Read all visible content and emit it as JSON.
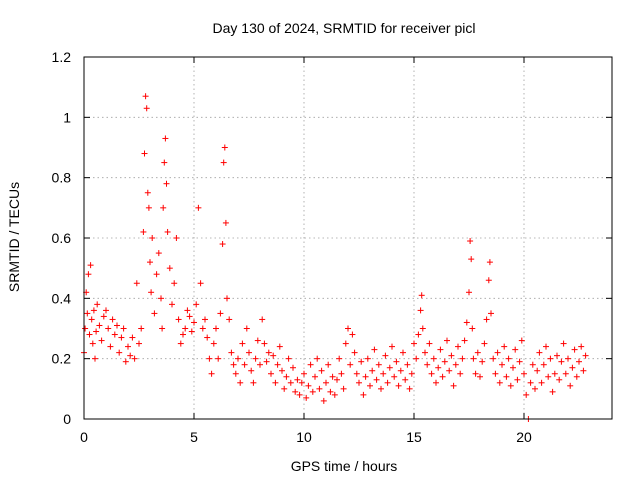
{
  "chart_data": {
    "type": "scatter",
    "title": "Day 130 of 2024, SRMTID for receiver picl",
    "xlabel": "GPS time / hours",
    "ylabel": "SRMTID / TECUs",
    "xlim": [
      0,
      24
    ],
    "ylim": [
      0,
      1.2
    ],
    "xticks": [
      0,
      5,
      10,
      15,
      20
    ],
    "yticks": [
      0,
      0.2,
      0.4,
      0.6,
      0.8,
      1,
      1.2
    ],
    "xtick_labels": [
      "0",
      "5",
      "10",
      "15",
      "20"
    ],
    "ytick_labels": [
      "0",
      "0.2",
      "0.4",
      "0.6",
      "0.8",
      "1",
      "1.2"
    ],
    "grid": true,
    "marker": "+",
    "color": "#ff0000",
    "series": [
      {
        "name": "SRMTID",
        "points": [
          [
            0.0,
            0.22
          ],
          [
            0.05,
            0.3
          ],
          [
            0.1,
            0.42
          ],
          [
            0.15,
            0.35
          ],
          [
            0.2,
            0.48
          ],
          [
            0.25,
            0.28
          ],
          [
            0.3,
            0.51
          ],
          [
            0.35,
            0.33
          ],
          [
            0.4,
            0.25
          ],
          [
            0.45,
            0.36
          ],
          [
            0.5,
            0.2
          ],
          [
            0.55,
            0.29
          ],
          [
            0.6,
            0.38
          ],
          [
            0.7,
            0.31
          ],
          [
            0.8,
            0.26
          ],
          [
            0.9,
            0.34
          ],
          [
            1.0,
            0.36
          ],
          [
            1.1,
            0.3
          ],
          [
            1.2,
            0.24
          ],
          [
            1.3,
            0.33
          ],
          [
            1.4,
            0.28
          ],
          [
            1.5,
            0.31
          ],
          [
            1.6,
            0.22
          ],
          [
            1.7,
            0.27
          ],
          [
            1.8,
            0.3
          ],
          [
            1.9,
            0.19
          ],
          [
            2.0,
            0.24
          ],
          [
            2.1,
            0.21
          ],
          [
            2.2,
            0.27
          ],
          [
            2.3,
            0.2
          ],
          [
            2.4,
            0.45
          ],
          [
            2.5,
            0.25
          ],
          [
            2.6,
            0.3
          ],
          [
            2.7,
            0.62
          ],
          [
            2.75,
            0.88
          ],
          [
            2.8,
            1.07
          ],
          [
            2.85,
            1.03
          ],
          [
            2.9,
            0.75
          ],
          [
            2.95,
            0.7
          ],
          [
            3.0,
            0.52
          ],
          [
            3.05,
            0.42
          ],
          [
            3.1,
            0.6
          ],
          [
            3.2,
            0.35
          ],
          [
            3.3,
            0.48
          ],
          [
            3.4,
            0.55
          ],
          [
            3.5,
            0.4
          ],
          [
            3.55,
            0.3
          ],
          [
            3.6,
            0.7
          ],
          [
            3.65,
            0.85
          ],
          [
            3.7,
            0.93
          ],
          [
            3.75,
            0.78
          ],
          [
            3.8,
            0.62
          ],
          [
            3.9,
            0.5
          ],
          [
            4.0,
            0.38
          ],
          [
            4.1,
            0.45
          ],
          [
            4.2,
            0.6
          ],
          [
            4.3,
            0.33
          ],
          [
            4.4,
            0.25
          ],
          [
            4.5,
            0.28
          ],
          [
            4.6,
            0.3
          ],
          [
            4.7,
            0.36
          ],
          [
            4.8,
            0.34
          ],
          [
            4.9,
            0.29
          ],
          [
            5.0,
            0.32
          ],
          [
            5.1,
            0.38
          ],
          [
            5.2,
            0.7
          ],
          [
            5.3,
            0.45
          ],
          [
            5.4,
            0.3
          ],
          [
            5.5,
            0.33
          ],
          [
            5.6,
            0.27
          ],
          [
            5.7,
            0.2
          ],
          [
            5.8,
            0.15
          ],
          [
            5.9,
            0.25
          ],
          [
            6.0,
            0.3
          ],
          [
            6.1,
            0.2
          ],
          [
            6.2,
            0.35
          ],
          [
            6.3,
            0.58
          ],
          [
            6.35,
            0.85
          ],
          [
            6.4,
            0.9
          ],
          [
            6.45,
            0.65
          ],
          [
            6.5,
            0.4
          ],
          [
            6.6,
            0.33
          ],
          [
            6.7,
            0.22
          ],
          [
            6.8,
            0.18
          ],
          [
            6.9,
            0.15
          ],
          [
            7.0,
            0.2
          ],
          [
            7.1,
            0.12
          ],
          [
            7.2,
            0.25
          ],
          [
            7.3,
            0.18
          ],
          [
            7.4,
            0.3
          ],
          [
            7.5,
            0.22
          ],
          [
            7.6,
            0.16
          ],
          [
            7.7,
            0.12
          ],
          [
            7.8,
            0.2
          ],
          [
            7.9,
            0.26
          ],
          [
            8.0,
            0.18
          ],
          [
            8.1,
            0.33
          ],
          [
            8.2,
            0.25
          ],
          [
            8.3,
            0.19
          ],
          [
            8.4,
            0.22
          ],
          [
            8.5,
            0.15
          ],
          [
            8.6,
            0.21
          ],
          [
            8.7,
            0.12
          ],
          [
            8.8,
            0.18
          ],
          [
            8.9,
            0.24
          ],
          [
            9.0,
            0.16
          ],
          [
            9.1,
            0.1
          ],
          [
            9.2,
            0.14
          ],
          [
            9.3,
            0.2
          ],
          [
            9.4,
            0.12
          ],
          [
            9.5,
            0.17
          ],
          [
            9.6,
            0.09
          ],
          [
            9.7,
            0.13
          ],
          [
            9.8,
            0.08
          ],
          [
            9.9,
            0.12
          ],
          [
            10.0,
            0.15
          ],
          [
            10.1,
            0.07
          ],
          [
            10.2,
            0.11
          ],
          [
            10.3,
            0.18
          ],
          [
            10.4,
            0.09
          ],
          [
            10.5,
            0.14
          ],
          [
            10.6,
            0.2
          ],
          [
            10.7,
            0.1
          ],
          [
            10.8,
            0.16
          ],
          [
            10.9,
            0.06
          ],
          [
            11.0,
            0.12
          ],
          [
            11.1,
            0.18
          ],
          [
            11.2,
            0.09
          ],
          [
            11.3,
            0.14
          ],
          [
            11.4,
            0.08
          ],
          [
            11.5,
            0.13
          ],
          [
            11.6,
            0.2
          ],
          [
            11.7,
            0.15
          ],
          [
            11.8,
            0.1
          ],
          [
            11.9,
            0.25
          ],
          [
            12.0,
            0.3
          ],
          [
            12.1,
            0.18
          ],
          [
            12.2,
            0.28
          ],
          [
            12.3,
            0.22
          ],
          [
            12.4,
            0.15
          ],
          [
            12.5,
            0.12
          ],
          [
            12.6,
            0.19
          ],
          [
            12.7,
            0.08
          ],
          [
            12.8,
            0.14
          ],
          [
            12.9,
            0.2
          ],
          [
            13.0,
            0.11
          ],
          [
            13.1,
            0.16
          ],
          [
            13.2,
            0.23
          ],
          [
            13.3,
            0.13
          ],
          [
            13.4,
            0.18
          ],
          [
            13.5,
            0.1
          ],
          [
            13.6,
            0.15
          ],
          [
            13.7,
            0.21
          ],
          [
            13.8,
            0.12
          ],
          [
            13.9,
            0.17
          ],
          [
            14.0,
            0.24
          ],
          [
            14.1,
            0.14
          ],
          [
            14.2,
            0.19
          ],
          [
            14.3,
            0.11
          ],
          [
            14.4,
            0.16
          ],
          [
            14.5,
            0.22
          ],
          [
            14.6,
            0.13
          ],
          [
            14.7,
            0.18
          ],
          [
            14.8,
            0.1
          ],
          [
            14.9,
            0.15
          ],
          [
            15.0,
            0.25
          ],
          [
            15.1,
            0.2
          ],
          [
            15.2,
            0.28
          ],
          [
            15.3,
            0.36
          ],
          [
            15.35,
            0.41
          ],
          [
            15.4,
            0.3
          ],
          [
            15.5,
            0.22
          ],
          [
            15.6,
            0.18
          ],
          [
            15.7,
            0.25
          ],
          [
            15.8,
            0.15
          ],
          [
            15.9,
            0.2
          ],
          [
            16.0,
            0.12
          ],
          [
            16.1,
            0.17
          ],
          [
            16.2,
            0.23
          ],
          [
            16.3,
            0.14
          ],
          [
            16.4,
            0.19
          ],
          [
            16.5,
            0.26
          ],
          [
            16.6,
            0.16
          ],
          [
            16.7,
            0.21
          ],
          [
            16.8,
            0.11
          ],
          [
            16.9,
            0.18
          ],
          [
            17.0,
            0.24
          ],
          [
            17.1,
            0.15
          ],
          [
            17.2,
            0.2
          ],
          [
            17.3,
            0.26
          ],
          [
            17.4,
            0.32
          ],
          [
            17.5,
            0.42
          ],
          [
            17.55,
            0.59
          ],
          [
            17.6,
            0.53
          ],
          [
            17.65,
            0.3
          ],
          [
            17.7,
            0.2
          ],
          [
            17.8,
            0.15
          ],
          [
            17.9,
            0.22
          ],
          [
            18.0,
            0.14
          ],
          [
            18.1,
            0.19
          ],
          [
            18.2,
            0.25
          ],
          [
            18.3,
            0.33
          ],
          [
            18.4,
            0.46
          ],
          [
            18.45,
            0.52
          ],
          [
            18.5,
            0.35
          ],
          [
            18.6,
            0.2
          ],
          [
            18.7,
            0.15
          ],
          [
            18.8,
            0.22
          ],
          [
            18.9,
            0.12
          ],
          [
            19.0,
            0.18
          ],
          [
            19.1,
            0.24
          ],
          [
            19.2,
            0.14
          ],
          [
            19.3,
            0.2
          ],
          [
            19.4,
            0.11
          ],
          [
            19.5,
            0.17
          ],
          [
            19.6,
            0.23
          ],
          [
            19.7,
            0.13
          ],
          [
            19.8,
            0.19
          ],
          [
            19.9,
            0.26
          ],
          [
            20.0,
            0.15
          ],
          [
            20.1,
            0.08
          ],
          [
            20.2,
            0.0
          ],
          [
            20.3,
            0.12
          ],
          [
            20.4,
            0.18
          ],
          [
            20.5,
            0.1
          ],
          [
            20.6,
            0.16
          ],
          [
            20.7,
            0.22
          ],
          [
            20.8,
            0.12
          ],
          [
            20.9,
            0.18
          ],
          [
            21.0,
            0.24
          ],
          [
            21.1,
            0.14
          ],
          [
            21.2,
            0.2
          ],
          [
            21.3,
            0.09
          ],
          [
            21.4,
            0.15
          ],
          [
            21.5,
            0.21
          ],
          [
            21.6,
            0.13
          ],
          [
            21.7,
            0.19
          ],
          [
            21.8,
            0.25
          ],
          [
            21.9,
            0.15
          ],
          [
            22.0,
            0.2
          ],
          [
            22.1,
            0.11
          ],
          [
            22.2,
            0.17
          ],
          [
            22.3,
            0.23
          ],
          [
            22.4,
            0.14
          ],
          [
            22.5,
            0.19
          ],
          [
            22.6,
            0.24
          ],
          [
            22.7,
            0.16
          ],
          [
            22.8,
            0.21
          ]
        ]
      }
    ]
  }
}
